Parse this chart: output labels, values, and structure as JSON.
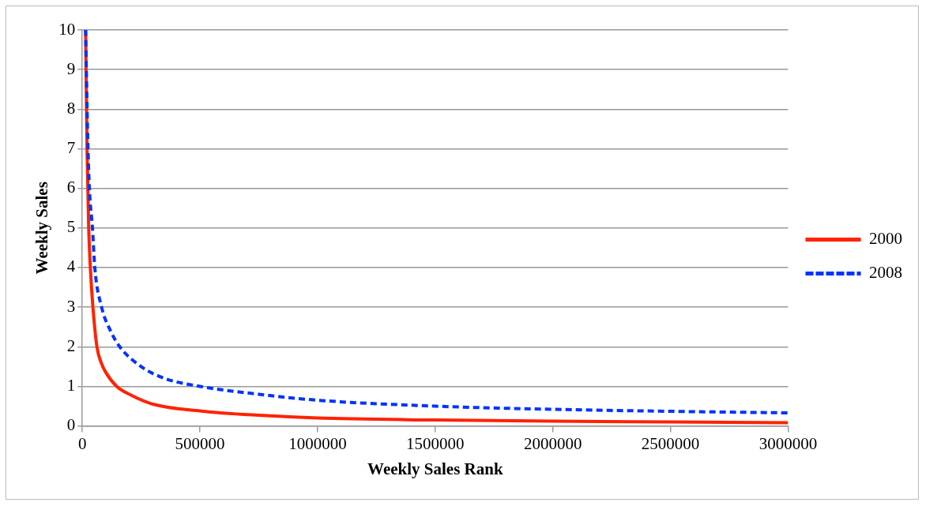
{
  "chart_data": {
    "type": "line",
    "xlabel": "Weekly Sales Rank",
    "ylabel": "Weekly Sales",
    "xlim": [
      0,
      3000000
    ],
    "xticks": [
      0,
      500000,
      1000000,
      1500000,
      2000000,
      2500000,
      3000000
    ],
    "ylim": [
      0,
      10
    ],
    "yticks": [
      0,
      1,
      2,
      3,
      4,
      5,
      6,
      7,
      8,
      9,
      10
    ],
    "grid": "y",
    "legend": "right",
    "marker": "none",
    "series": [
      {
        "name": "2000",
        "color": "#ff2200",
        "line_style": "solid",
        "x": [
          14000,
          20000,
          27000,
          35000,
          45000,
          62000,
          80000,
          100000,
          146000,
          200000,
          300000,
          500000,
          750000,
          1000000,
          1500000,
          2000000,
          2500000,
          3000000
        ],
        "values": [
          10,
          7,
          5,
          3.9,
          3,
          2,
          1.6,
          1.35,
          1,
          0.8,
          0.55,
          0.38,
          0.27,
          0.2,
          0.15,
          0.12,
          0.1,
          0.08
        ]
      },
      {
        "name": "2008",
        "color": "#0033ff",
        "line_style": "dashed",
        "x": [
          14000,
          22000,
          30000,
          43000,
          53000,
          82000,
          120000,
          159000,
          250000,
          350000,
          500000,
          750000,
          1000000,
          1500000,
          2000000,
          2500000,
          3000000
        ],
        "values": [
          10,
          7.5,
          6,
          5,
          4,
          3,
          2.4,
          2,
          1.5,
          1.2,
          1,
          0.8,
          0.65,
          0.5,
          0.42,
          0.37,
          0.33
        ]
      }
    ]
  }
}
